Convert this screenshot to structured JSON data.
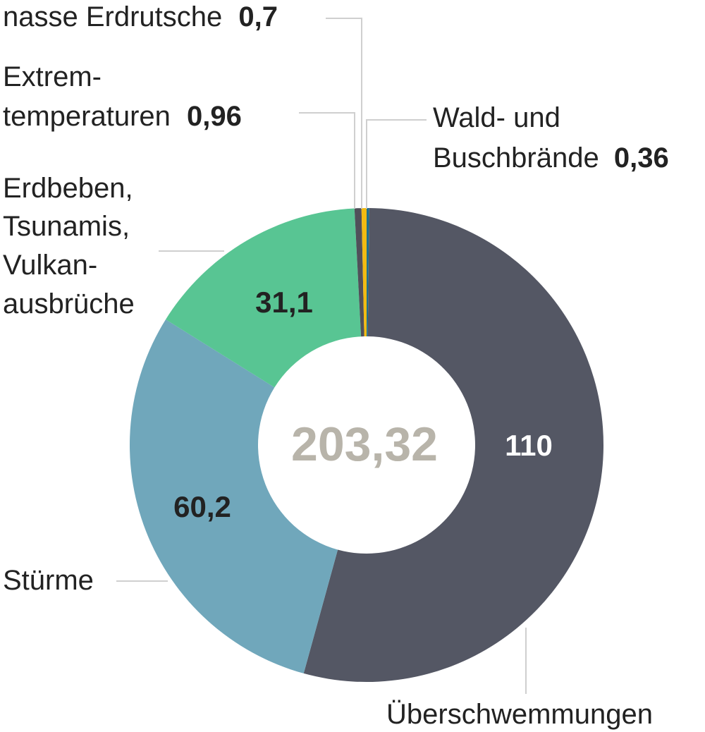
{
  "chart_data": {
    "type": "pie",
    "style": "donut",
    "total": "203,32",
    "series": [
      {
        "name": "Wald- und Buschbrände",
        "value": 0.36,
        "label": "0,36",
        "color": "#1f6e8c"
      },
      {
        "name": "Überschwemmungen",
        "value": 110,
        "label": "110",
        "color": "#545764"
      },
      {
        "name": "Stürme",
        "value": 60.2,
        "label": "60,2",
        "color": "#70a7bb"
      },
      {
        "name": "Erdbeben, Tsunamis, Vulkanausbrüche",
        "value": 31.1,
        "label": "31,1",
        "color": "#58c593"
      },
      {
        "name": "Extremtemperaturen",
        "value": 0.96,
        "label": "0,96",
        "color": "#50505a"
      },
      {
        "name": "nasse Erdrutsche",
        "value": 0.7,
        "label": "0,7",
        "color": "#f2bb12"
      }
    ],
    "label_texts": {
      "erdrutsche": "nasse Erdrutsche",
      "extrem_1": "Extrem-",
      "extrem_2": "temperaturen",
      "wald_1": "Wald- und",
      "wald_2": "Buschbrände",
      "erdbeben_1": "Erdbeben,",
      "erdbeben_2": "Tsunamis,",
      "erdbeben_3": "Vulkan-",
      "erdbeben_4": "ausbrüche",
      "stuerme": "Stürme",
      "ueberschwemmungen": "Überschwemmungen"
    }
  }
}
